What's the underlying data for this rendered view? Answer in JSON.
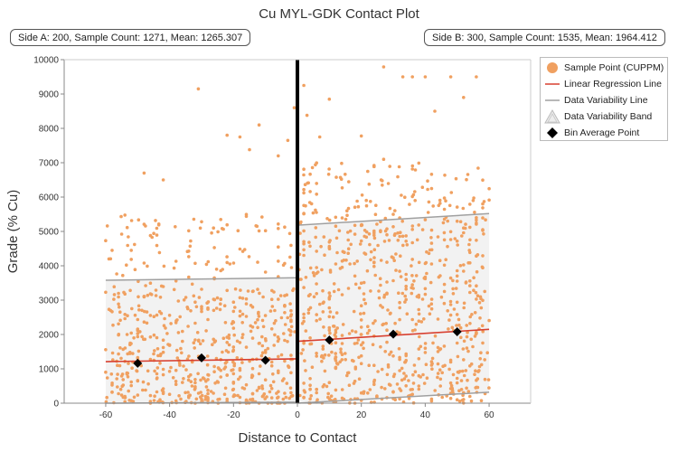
{
  "chart_data": {
    "type": "scatter",
    "title": "Cu MYL-GDK Contact Plot",
    "xlabel": "Distance to Contact",
    "ylabel": "Grade (% Cu)",
    "xlim": [
      -73,
      73
    ],
    "ylim": [
      0,
      10000
    ],
    "x_ticks": [
      -60,
      -40,
      -20,
      0,
      20,
      40,
      60
    ],
    "y_ticks": [
      0,
      1000,
      2000,
      3000,
      4000,
      5000,
      6000,
      7000,
      8000,
      9000,
      10000
    ],
    "grid": false,
    "contact_x": 0,
    "side_a": {
      "label": "Side A: 200, Sample Count: 1271, Mean: 1265.307",
      "sample_count": 1271,
      "mean": 1265.307
    },
    "side_b": {
      "label": "Side B: 300, Sample Count: 1535, Mean: 1964.412",
      "sample_count": 1535,
      "mean": 1964.412
    },
    "legend": {
      "position": "right",
      "items": [
        {
          "key": "sample_point",
          "label": "Sample Point (CUPPM)"
        },
        {
          "key": "regression",
          "label": "Linear Regression Line"
        },
        {
          "key": "variability_line",
          "label": "Data Variability Line"
        },
        {
          "key": "variability_band",
          "label": "Data Variability Band"
        },
        {
          "key": "bin_average",
          "label": "Bin Average Point"
        }
      ]
    },
    "colors": {
      "sample_point": "#F0A060",
      "regression": "#D84030",
      "variability_line": "#A0A0A0",
      "variability_band": "#F2F2F2",
      "bin_average": "#000000",
      "contact_line": "#000000"
    },
    "regression_lines": [
      {
        "side": "A",
        "x": [
          -60,
          0
        ],
        "y": [
          1210,
          1290
        ]
      },
      {
        "side": "B",
        "x": [
          0,
          60
        ],
        "y": [
          1800,
          2150
        ]
      }
    ],
    "variability_upper": [
      {
        "side": "A",
        "x": [
          -60,
          0
        ],
        "y": [
          3580,
          3650
        ]
      },
      {
        "side": "B",
        "x": [
          0,
          60
        ],
        "y": [
          5180,
          5520
        ]
      }
    ],
    "variability_lower": [
      {
        "side": "A",
        "x": [
          -60,
          0
        ],
        "y": [
          0,
          30
        ]
      },
      {
        "side": "B",
        "x": [
          0,
          60
        ],
        "y": [
          0,
          320
        ]
      }
    ],
    "bin_averages": [
      {
        "x": -50,
        "y": 1160
      },
      {
        "x": -30,
        "y": 1320
      },
      {
        "x": -10,
        "y": 1250
      },
      {
        "x": 10,
        "y": 1840
      },
      {
        "x": 30,
        "y": 2010
      },
      {
        "x": 50,
        "y": 2080
      }
    ],
    "sample_points_sample": [
      {
        "x": -59,
        "y": 4200
      },
      {
        "x": -58,
        "y": 4450
      },
      {
        "x": -55,
        "y": 4920
      },
      {
        "x": -51,
        "y": 4620
      },
      {
        "x": -48,
        "y": 6700
      },
      {
        "x": -42,
        "y": 6500
      },
      {
        "x": -31,
        "y": 9150
      },
      {
        "x": -22,
        "y": 7800
      },
      {
        "x": -18,
        "y": 7750
      },
      {
        "x": -15,
        "y": 7380
      },
      {
        "x": -12,
        "y": 8100
      },
      {
        "x": -6,
        "y": 7200
      },
      {
        "x": -3,
        "y": 7650
      },
      {
        "x": -1,
        "y": 8600
      },
      {
        "x": 2,
        "y": 9250
      },
      {
        "x": 3,
        "y": 8380
      },
      {
        "x": 7,
        "y": 7750
      },
      {
        "x": 10,
        "y": 8850
      },
      {
        "x": 20,
        "y": 7780
      },
      {
        "x": 27,
        "y": 7100
      },
      {
        "x": 27,
        "y": 9790
      },
      {
        "x": 33,
        "y": 9500
      },
      {
        "x": 36,
        "y": 9500
      },
      {
        "x": 40,
        "y": 9500
      },
      {
        "x": 43,
        "y": 8500
      },
      {
        "x": 48,
        "y": 9500
      },
      {
        "x": 52,
        "y": 8900
      },
      {
        "x": 56,
        "y": 9500
      },
      {
        "x": 55,
        "y": 5900
      },
      {
        "x": 58,
        "y": 5800
      }
    ]
  }
}
